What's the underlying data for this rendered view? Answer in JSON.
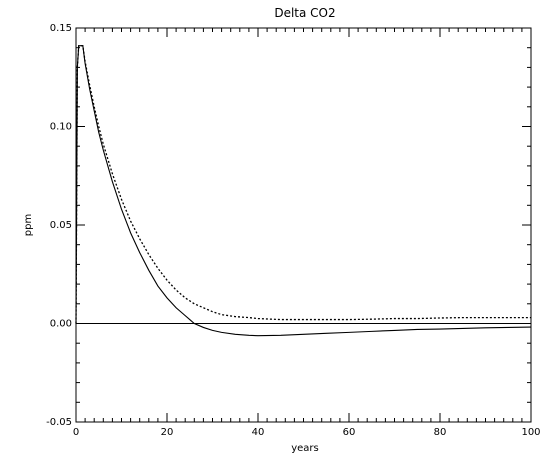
{
  "chart_data": {
    "type": "line",
    "title": "Delta CO2",
    "xlabel": "years",
    "ylabel": "ppm",
    "xlim": [
      0,
      100
    ],
    "ylim": [
      -0.05,
      0.15
    ],
    "grid": false,
    "x_ticks": [
      0,
      20,
      40,
      60,
      80,
      100
    ],
    "x_tick_labels": [
      "0",
      "20",
      "40",
      "60",
      "80",
      "100"
    ],
    "y_ticks": [
      -0.05,
      0.0,
      0.05,
      0.1,
      0.15
    ],
    "y_tick_labels": [
      "-0.05",
      "0.00",
      "0.05",
      "0.10",
      "0.15"
    ],
    "reference_lines": [
      {
        "y": 0.0,
        "style": "solid"
      }
    ],
    "series": [
      {
        "style": "solid",
        "color": "#000000",
        "x": [
          0,
          0.3,
          0.6,
          1,
          1.5,
          2,
          3,
          4,
          5,
          6,
          8,
          10,
          12,
          14,
          16,
          18,
          20,
          22,
          24,
          25,
          26,
          28,
          30,
          32,
          35,
          38,
          40,
          45,
          50,
          55,
          60,
          65,
          70,
          75,
          80,
          85,
          90,
          95,
          100
        ],
        "y": [
          0.0,
          0.13,
          0.141,
          0.141,
          0.141,
          0.132,
          0.119,
          0.108,
          0.097,
          0.088,
          0.072,
          0.058,
          0.046,
          0.036,
          0.027,
          0.019,
          0.013,
          0.008,
          0.004,
          0.002,
          0.0,
          -0.002,
          -0.0035,
          -0.0045,
          -0.0055,
          -0.006,
          -0.0062,
          -0.006,
          -0.0055,
          -0.005,
          -0.0045,
          -0.004,
          -0.0035,
          -0.003,
          -0.0028,
          -0.0025,
          -0.0022,
          -0.002,
          -0.0018
        ]
      },
      {
        "style": "dotted",
        "color": "#000000",
        "x": [
          0,
          0.3,
          0.6,
          1,
          1.5,
          2,
          3,
          4,
          5,
          6,
          8,
          10,
          12,
          14,
          16,
          18,
          20,
          22,
          24,
          26,
          28,
          30,
          32,
          35,
          38,
          40,
          45,
          50,
          55,
          60,
          65,
          70,
          75,
          80,
          85,
          90,
          95,
          100
        ],
        "y": [
          0.0,
          0.13,
          0.141,
          0.141,
          0.141,
          0.133,
          0.121,
          0.11,
          0.1,
          0.091,
          0.076,
          0.063,
          0.052,
          0.043,
          0.035,
          0.028,
          0.022,
          0.017,
          0.013,
          0.01,
          0.008,
          0.006,
          0.0045,
          0.0035,
          0.003,
          0.0025,
          0.002,
          0.002,
          0.002,
          0.002,
          0.0022,
          0.0025,
          0.0025,
          0.0028,
          0.003,
          0.003,
          0.003,
          0.003
        ]
      }
    ]
  }
}
